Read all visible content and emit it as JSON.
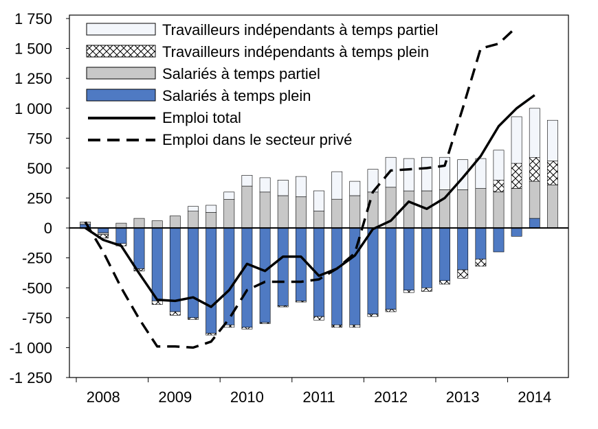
{
  "chart_data": {
    "type": "bar",
    "ylim": [
      -1250,
      1750
    ],
    "y_ticks": [
      {
        "v": 1750,
        "label": "1 750"
      },
      {
        "v": 1500,
        "label": "1 500"
      },
      {
        "v": 1250,
        "label": "1 250"
      },
      {
        "v": 1000,
        "label": "1 000"
      },
      {
        "v": 750,
        "label": "750"
      },
      {
        "v": 500,
        "label": "500"
      },
      {
        "v": 250,
        "label": "250"
      },
      {
        "v": 0,
        "label": "0"
      },
      {
        "v": -250,
        "label": "-250"
      },
      {
        "v": -500,
        "label": "-500"
      },
      {
        "v": -750,
        "label": "-750"
      },
      {
        "v": -1000,
        "label": "-1 000"
      },
      {
        "v": -1250,
        "label": "-1 250"
      }
    ],
    "x_labels": [
      {
        "label": "2008",
        "q": 1.5
      },
      {
        "label": "2009",
        "q": 5.5
      },
      {
        "label": "2010",
        "q": 9.5
      },
      {
        "label": "2011",
        "q": 13.5
      },
      {
        "label": "2012",
        "q": 17.5
      },
      {
        "label": "2013",
        "q": 21.5
      },
      {
        "label": "2014",
        "q": 25.5
      }
    ],
    "quarters": 27,
    "series": [
      {
        "key": "pt_self",
        "name": "Travailleurs indépendants à temps partiel",
        "pattern": "light",
        "values": [
          0,
          0,
          0,
          0,
          0,
          0,
          40,
          60,
          60,
          90,
          120,
          130,
          170,
          170,
          230,
          120,
          190,
          250,
          270,
          280,
          270,
          250,
          250,
          250,
          390,
          410,
          340
        ]
      },
      {
        "key": "ft_self",
        "name": "Travailleurs indépendants à temps plein",
        "pattern": "cross",
        "values": [
          -5,
          -30,
          -20,
          -20,
          -30,
          -30,
          -15,
          -15,
          -20,
          -15,
          -10,
          -10,
          -10,
          -30,
          -20,
          -20,
          -20,
          -20,
          -20,
          -30,
          -30,
          -70,
          -60,
          100,
          210,
          200,
          200
        ]
      },
      {
        "key": "pt_emp",
        "name": "Salariés à temps partiel",
        "pattern": "gray",
        "values": [
          20,
          -15,
          40,
          80,
          60,
          100,
          140,
          130,
          240,
          350,
          300,
          270,
          260,
          140,
          240,
          270,
          300,
          340,
          310,
          310,
          320,
          320,
          330,
          300,
          330,
          310,
          360
        ]
      },
      {
        "key": "ft_emp",
        "name": "Salariés à temps plein",
        "pattern": "blue",
        "values": [
          30,
          -40,
          -130,
          -340,
          -610,
          -700,
          -750,
          -880,
          -810,
          -830,
          -790,
          -650,
          -610,
          -740,
          -810,
          -810,
          -720,
          -680,
          -520,
          -500,
          -440,
          -350,
          -260,
          -200,
          -70,
          80,
          0
        ]
      }
    ],
    "lines": [
      {
        "key": "total",
        "name": "Emploi total",
        "style": "solid",
        "values": [
          0,
          -100,
          -150,
          -380,
          -600,
          -610,
          -580,
          -660,
          -520,
          -300,
          -360,
          -240,
          -240,
          -400,
          -340,
          -230,
          -10,
          60,
          220,
          160,
          250,
          420,
          600,
          850,
          1000,
          1110,
          null
        ]
      },
      {
        "key": "private",
        "name": "Emploi dans le secteur privé",
        "style": "dashed",
        "values": [
          50,
          -200,
          -500,
          -760,
          -990,
          -990,
          -1000,
          -950,
          -760,
          -520,
          -450,
          -450,
          -450,
          -430,
          -340,
          -210,
          300,
          480,
          490,
          500,
          520,
          1000,
          1500,
          1540,
          1680,
          null,
          null
        ]
      }
    ],
    "colors": {
      "blue": "#4f7ac3",
      "blue_dark": "#2f5597",
      "gray": "#c8c8c8",
      "light": "#f3f6fb",
      "axis": "#000000"
    }
  }
}
